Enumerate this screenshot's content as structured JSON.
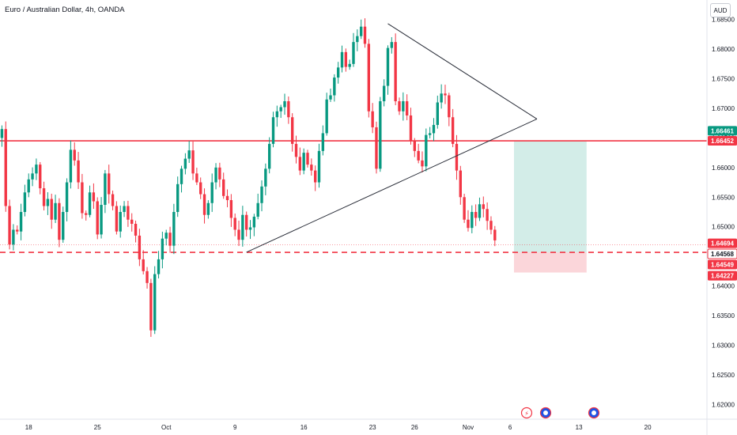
{
  "header": {
    "symbol_title": "Euro / Australian Dollar, 4h, OANDA",
    "currency_button": "AUD"
  },
  "icons": [
    "lightning-icon",
    "flag-icon",
    "calendar-event-icon"
  ],
  "colors": {
    "up": "#089981",
    "down": "#f23645",
    "resistance_line": "#f23645",
    "support_line": "#f23645",
    "target_zone": "#d3ede8",
    "stop_zone": "#fbd6da",
    "trendline": "#2a2e39"
  },
  "chart_data": {
    "type": "candlestick",
    "symbol": "EUR/AUD",
    "interval": "4h",
    "y_range": [
      1.6175,
      1.6883
    ],
    "y_ticks": [
      "1.68500",
      "1.68000",
      "1.67500",
      "1.67000",
      "1.66500",
      "1.66000",
      "1.65500",
      "1.65000",
      "1.64500",
      "1.64000",
      "1.63500",
      "1.63000",
      "1.62500",
      "1.62000"
    ],
    "x_ticks": [
      {
        "label": "18",
        "i": 7
      },
      {
        "label": "25",
        "i": 25
      },
      {
        "label": "Oct",
        "i": 43
      },
      {
        "label": "9",
        "i": 61
      },
      {
        "label": "16",
        "i": 79
      },
      {
        "label": "23",
        "i": 97
      },
      {
        "label": "26",
        "i": 108
      },
      {
        "label": "Nov",
        "i": 122
      },
      {
        "label": "6",
        "i": 133
      },
      {
        "label": "13",
        "i": 151
      },
      {
        "label": "20",
        "i": 169
      }
    ],
    "bar_count_visible": 185,
    "closes": [
      1.6665,
      1.6535,
      1.647,
      1.6495,
      1.6492,
      1.6525,
      1.6558,
      1.658,
      1.659,
      1.6605,
      1.6565,
      1.6535,
      1.6547,
      1.6512,
      1.654,
      1.6478,
      1.6525,
      1.6575,
      1.663,
      1.6612,
      1.6575,
      1.6523,
      1.652,
      1.6558,
      1.6543,
      1.6487,
      1.6537,
      1.659,
      1.6555,
      1.6535,
      1.6492,
      1.6525,
      1.6535,
      1.6512,
      1.6505,
      1.6485,
      1.6445,
      1.6425,
      1.6405,
      1.6325,
      1.642,
      1.6445,
      1.648,
      1.649,
      1.6468,
      1.6525,
      1.6572,
      1.6598,
      1.6615,
      1.6629,
      1.659,
      1.6575,
      1.6555,
      1.652,
      1.654,
      1.6575,
      1.66,
      1.658,
      1.6552,
      1.6545,
      1.6515,
      1.6495,
      1.6478,
      1.652,
      1.6495,
      1.6499,
      1.6517,
      1.654,
      1.6568,
      1.6598,
      1.664,
      1.6685,
      1.6695,
      1.6702,
      1.6712,
      1.6685,
      1.664,
      1.6618,
      1.6595,
      1.6625,
      1.6605,
      1.6595,
      1.6575,
      1.6628,
      1.6658,
      1.6715,
      1.6722,
      1.6752,
      1.6769,
      1.6795,
      1.677,
      1.6775,
      1.6812,
      1.6822,
      1.6838,
      1.6809,
      1.6695,
      1.6668,
      1.6598,
      1.6712,
      1.6738,
      1.6802,
      1.6812,
      1.6712,
      1.6695,
      1.6712,
      1.6688,
      1.6645,
      1.6628,
      1.6612,
      1.6602,
      1.6655,
      1.6658,
      1.6672,
      1.671,
      1.6725,
      1.6722,
      1.6685,
      1.664,
      1.6595,
      1.655,
      1.6512,
      1.6498,
      1.6525,
      1.6515,
      1.6538,
      1.653,
      1.651,
      1.6495,
      1.6477
    ],
    "price_levels": [
      {
        "name": "current-price",
        "value": 1.64694,
        "label": "1.64694"
      },
      {
        "name": "entry-price",
        "value": 1.64568,
        "label": "1.64568"
      },
      {
        "name": "stop-low",
        "value": 1.64549,
        "label": "1.64549"
      },
      {
        "name": "stop-loss",
        "value": 1.64227,
        "label": "1.64227"
      },
      {
        "name": "target",
        "value": 1.66452,
        "label": "1.66452"
      },
      {
        "name": "resistance",
        "value": 1.66461,
        "label": "1.66461"
      }
    ],
    "horizontal_lines": [
      {
        "name": "resistance",
        "value": 1.66452,
        "style": "solid"
      },
      {
        "name": "support",
        "value": 1.64568,
        "style": "dashed"
      }
    ],
    "triangle": {
      "apex": {
        "i": 140,
        "price": 1.6682
      },
      "upper_start": {
        "i": 101,
        "price": 1.6843
      },
      "lower_start": {
        "i": 64,
        "price": 1.6457
      }
    },
    "position": {
      "type": "long",
      "start_i": 134,
      "end_i": 153,
      "entry": 1.64568,
      "target": 1.66452,
      "stop": 1.64227
    }
  }
}
